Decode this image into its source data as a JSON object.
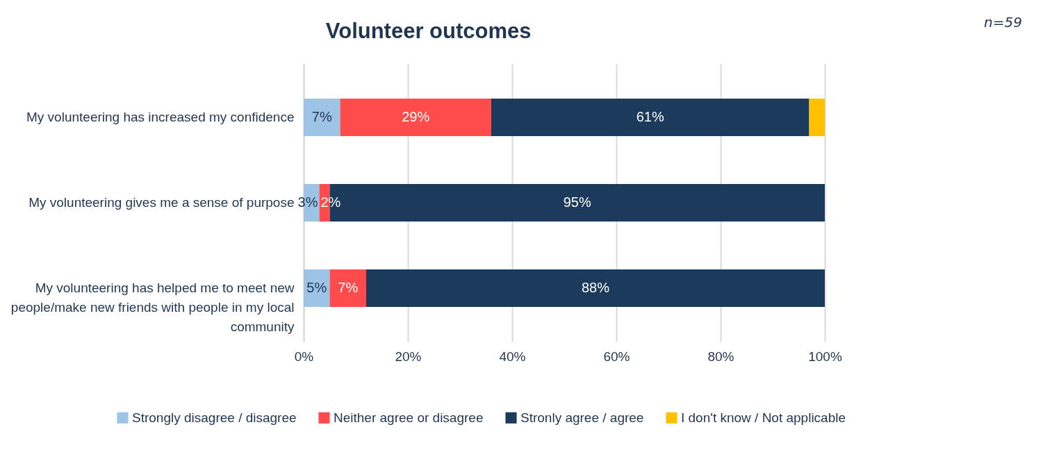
{
  "chart_data": {
    "type": "bar",
    "orientation": "horizontal",
    "stacked": true,
    "title": "Volunteer outcomes",
    "annotations": [
      "n=59"
    ],
    "categories": [
      "My volunteering has increased my confidence",
      "My volunteering gives me a sense of purpose",
      "My volunteering has helped me to meet new people/make new friends with people in my local community"
    ],
    "series": [
      {
        "name": "Strongly disagree / disagree",
        "color": "#9dc3e6",
        "values": [
          7,
          3,
          5
        ],
        "value_labels": [
          "7%",
          "3%",
          "5%"
        ]
      },
      {
        "name": "Neither agree or disagree",
        "color": "#ff4b4b",
        "values": [
          29,
          2,
          7
        ],
        "value_labels": [
          "29%",
          "2%",
          "7%"
        ]
      },
      {
        "name": "Stronly agree / agree",
        "color": "#1b3a5c",
        "values": [
          61,
          95,
          88
        ],
        "value_labels": [
          "61%",
          "95%",
          "88%"
        ]
      },
      {
        "name": "I don't know / Not applicable",
        "color": "#ffc000",
        "values": [
          3,
          null,
          null
        ],
        "value_labels": [
          null,
          null,
          null
        ]
      }
    ],
    "xlim": [
      0,
      100
    ],
    "xticks": [
      {
        "value": 0,
        "label": "0%"
      },
      {
        "value": 20,
        "label": "20%"
      },
      {
        "value": 40,
        "label": "40%"
      },
      {
        "value": 60,
        "label": "60%"
      },
      {
        "value": 80,
        "label": "80%"
      },
      {
        "value": 100,
        "label": "100%"
      }
    ],
    "grid": "x",
    "legend": "bottom"
  }
}
